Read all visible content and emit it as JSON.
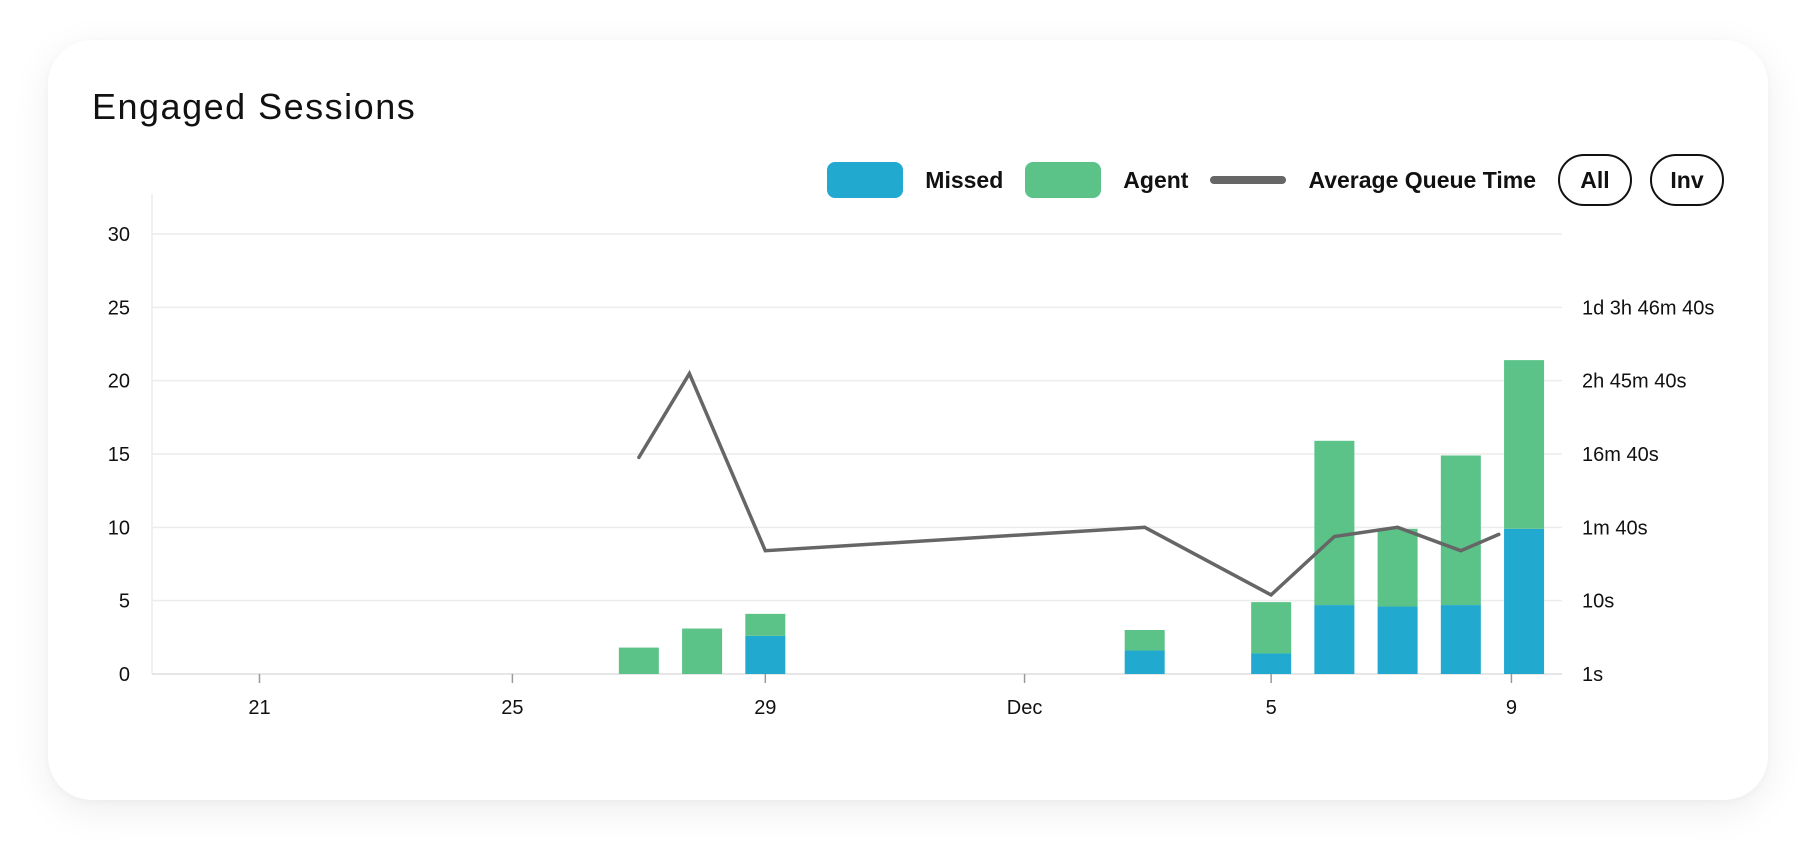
{
  "title": "Engaged Sessions",
  "legend": {
    "missed": "Missed",
    "agent": "Agent",
    "line": "Average Queue Time",
    "all_button": "All",
    "inv_button": "Inv"
  },
  "colors": {
    "missed": "#21a9cf",
    "agent": "#5bc388",
    "line": "#666666",
    "grid": "#ececec"
  },
  "chart_data": {
    "type": "bar",
    "stacked": true,
    "x_ticks": [
      {
        "label": "21",
        "day": -10
      },
      {
        "label": "25",
        "day": -6
      },
      {
        "label": "29",
        "day": -2
      },
      {
        "label": "Dec",
        "day": 2.1
      },
      {
        "label": "5",
        "day": 6
      },
      {
        "label": "9",
        "day": 9.8
      }
    ],
    "x_range": [
      -11.7,
      10.6
    ],
    "y_left": {
      "ticks": [
        0,
        5,
        10,
        15,
        20,
        25,
        30
      ],
      "range": [
        0,
        30
      ]
    },
    "y_right": {
      "scale": "log",
      "ticks": [
        {
          "label": "1s",
          "seconds": 1
        },
        {
          "label": "10s",
          "seconds": 10
        },
        {
          "label": "1m 40s",
          "seconds": 100
        },
        {
          "label": "16m 40s",
          "seconds": 1000
        },
        {
          "label": "2h 45m 40s",
          "seconds": 10000
        },
        {
          "label": "1d 3h 46m 40s",
          "seconds": 100000
        }
      ]
    },
    "bars": [
      {
        "day": -4,
        "missed": 0,
        "agent": 1.8
      },
      {
        "day": -3,
        "missed": 0,
        "agent": 3.1
      },
      {
        "day": -2,
        "missed": 2.6,
        "agent": 1.5
      },
      {
        "day": 4,
        "missed": 1.6,
        "agent": 1.4
      },
      {
        "day": 6,
        "missed": 1.4,
        "agent": 3.5
      },
      {
        "day": 7,
        "missed": 4.7,
        "agent": 11.2
      },
      {
        "day": 8,
        "missed": 4.6,
        "agent": 5.3
      },
      {
        "day": 9,
        "missed": 4.7,
        "agent": 10.2
      },
      {
        "day": 10,
        "missed": 9.9,
        "agent": 11.5
      }
    ],
    "series": [
      {
        "name": "Average Queue Time",
        "unit": "seconds",
        "points": [
          {
            "day": -4,
            "seconds": 900
          },
          {
            "day": -3.2,
            "seconds": 12500
          },
          {
            "day": -2,
            "seconds": 48
          },
          {
            "day": 4,
            "seconds": 100
          },
          {
            "day": 6,
            "seconds": 12
          },
          {
            "day": 7,
            "seconds": 75
          },
          {
            "day": 8,
            "seconds": 100
          },
          {
            "day": 9,
            "seconds": 48
          },
          {
            "day": 9.6,
            "seconds": 80
          }
        ]
      }
    ]
  }
}
